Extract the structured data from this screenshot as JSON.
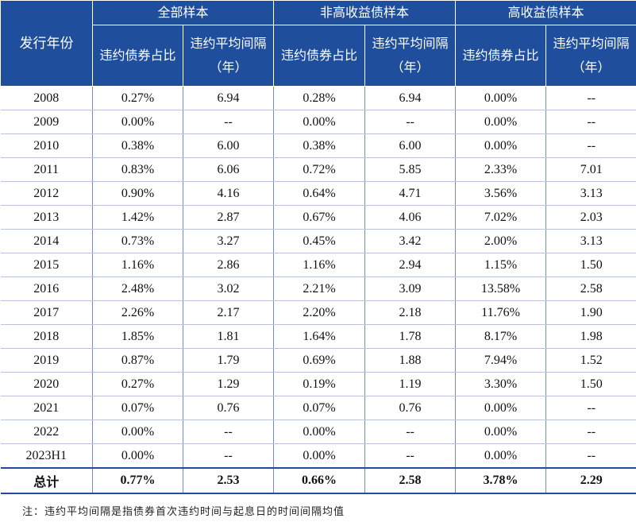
{
  "table": {
    "year_header": "发行年份",
    "groups": [
      "全部样本",
      "非高收益债样本",
      "高收益债样本"
    ],
    "subheaders": [
      "违约债券占比",
      "违约平均间隔（年）",
      "违约债券占比",
      "违约平均间隔（年）",
      "违约债券占比",
      "违约平均间隔（年）"
    ],
    "rows": [
      [
        "2008",
        "0.27%",
        "6.94",
        "0.28%",
        "6.94",
        "0.00%",
        "--"
      ],
      [
        "2009",
        "0.00%",
        "--",
        "0.00%",
        "--",
        "0.00%",
        "--"
      ],
      [
        "2010",
        "0.38%",
        "6.00",
        "0.38%",
        "6.00",
        "0.00%",
        "--"
      ],
      [
        "2011",
        "0.83%",
        "6.06",
        "0.72%",
        "5.85",
        "2.33%",
        "7.01"
      ],
      [
        "2012",
        "0.90%",
        "4.16",
        "0.64%",
        "4.71",
        "3.56%",
        "3.13"
      ],
      [
        "2013",
        "1.42%",
        "2.87",
        "0.67%",
        "4.06",
        "7.02%",
        "2.03"
      ],
      [
        "2014",
        "0.73%",
        "3.27",
        "0.45%",
        "3.42",
        "2.00%",
        "3.13"
      ],
      [
        "2015",
        "1.16%",
        "2.86",
        "1.16%",
        "2.94",
        "1.15%",
        "1.50"
      ],
      [
        "2016",
        "2.48%",
        "3.02",
        "2.21%",
        "3.09",
        "13.58%",
        "2.58"
      ],
      [
        "2017",
        "2.26%",
        "2.17",
        "2.20%",
        "2.18",
        "11.76%",
        "1.90"
      ],
      [
        "2018",
        "1.85%",
        "1.81",
        "1.64%",
        "1.78",
        "8.17%",
        "1.98"
      ],
      [
        "2019",
        "0.87%",
        "1.79",
        "0.69%",
        "1.88",
        "7.94%",
        "1.52"
      ],
      [
        "2020",
        "0.27%",
        "1.29",
        "0.19%",
        "1.19",
        "3.30%",
        "1.50"
      ],
      [
        "2021",
        "0.07%",
        "0.76",
        "0.07%",
        "0.76",
        "0.00%",
        "--"
      ],
      [
        "2022",
        "0.00%",
        "--",
        "0.00%",
        "--",
        "0.00%",
        "--"
      ],
      [
        "2023H1",
        "0.00%",
        "--",
        "0.00%",
        "--",
        "0.00%",
        "--"
      ]
    ],
    "total": [
      "总计",
      "0.77%",
      "2.53",
      "0.66%",
      "2.58",
      "3.78%",
      "2.29"
    ]
  },
  "note": "注：违约平均间隔是指债券首次违约时间与起息日的时间间隔均值"
}
